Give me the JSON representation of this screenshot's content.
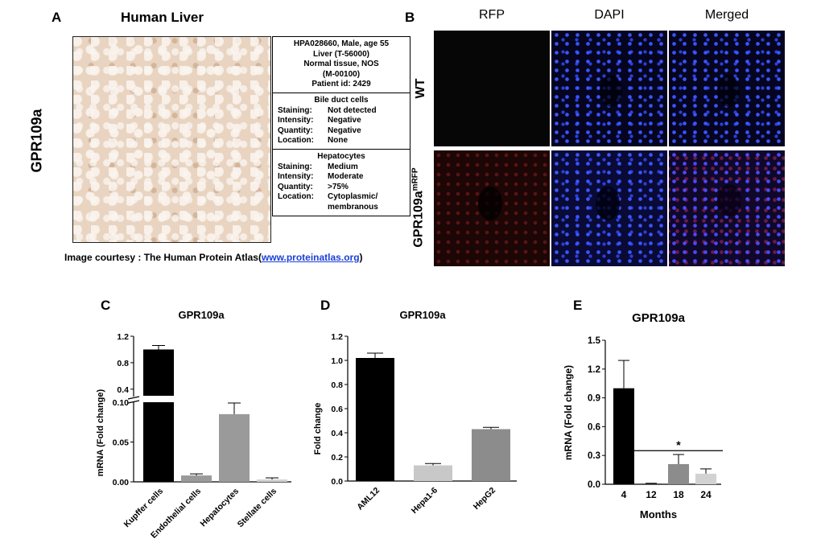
{
  "panelA": {
    "letter": "A",
    "title": "Human Liver",
    "row_label": "GPR109a",
    "info_header": [
      "HPA028660, Male, age 55",
      "Liver (T-56000)",
      "Normal tissue, NOS",
      "(M-00100)",
      "Patient id: 2429"
    ],
    "bile": {
      "title": "Bile duct cells",
      "rows": [
        [
          "Staining:",
          "Not detected"
        ],
        [
          "Intensity:",
          "Negative"
        ],
        [
          "Quantity:",
          "Negative"
        ],
        [
          "Location:",
          "None"
        ]
      ]
    },
    "hep": {
      "title": "Hepatocytes",
      "rows": [
        [
          "Staining:",
          "Medium"
        ],
        [
          "Intensity:",
          "Moderate"
        ],
        [
          "Quantity:",
          ">75%"
        ],
        [
          "Location:",
          "Cytoplasmic/"
        ],
        [
          "",
          "membranous"
        ]
      ]
    },
    "credit_text": "Image courtesy : The Human Protein Atlas(",
    "credit_link": "www.proteinatlas.org",
    "credit_end": ")"
  },
  "panelB": {
    "letter": "B",
    "columns": [
      "RFP",
      "DAPI",
      "Merged"
    ],
    "row1": "WT",
    "row2_main": "GPR109a",
    "row2_sup": "mRFP"
  },
  "colors": {
    "black_bar": "#000000",
    "gray_bar": "#8c8c8c",
    "light_bar": "#c8c8c8",
    "link": "#1a3fd6"
  },
  "chart_data": [
    {
      "letter": "C",
      "type": "bar",
      "title": "GPR109a",
      "ylabel": "mRNA (Fold change)",
      "categories": [
        "Kupffer cells",
        "Endothelial cells",
        "Hepatocytes",
        "Stellate cells"
      ],
      "values": [
        1.0,
        0.008,
        0.085,
        0.003
      ],
      "errors": [
        0.06,
        0.002,
        0.014,
        0.002
      ],
      "bar_colors": [
        "#000000",
        "#9a9a9a",
        "#9a9a9a",
        "#d2d2d2"
      ],
      "axis_break": true,
      "lower_ylim": [
        0,
        0.1
      ],
      "lower_ticks": [
        "0.00",
        "0.05",
        "0.10"
      ],
      "upper_ylim": [
        0.3,
        1.2
      ],
      "upper_ticks": [
        "0.4",
        "0.8",
        "1.2"
      ]
    },
    {
      "letter": "D",
      "type": "bar",
      "title": "GPR109a",
      "ylabel": "Fold change",
      "categories": [
        "AML12",
        "Hepa1-6",
        "HepG2"
      ],
      "values": [
        1.02,
        0.13,
        0.43
      ],
      "errors": [
        0.04,
        0.015,
        0.015
      ],
      "bar_colors": [
        "#000000",
        "#c8c8c8",
        "#8c8c8c"
      ],
      "ylim": [
        0,
        1.2
      ],
      "ticks": [
        "0.0",
        "0.2",
        "0.4",
        "0.6",
        "0.8",
        "1.0",
        "1.2"
      ]
    },
    {
      "letter": "E",
      "type": "bar",
      "title": "GPR109a",
      "ylabel": "mRNA (Fold change)",
      "xlabel": "Months",
      "categories": [
        "4",
        "12",
        "18",
        "24"
      ],
      "values": [
        1.0,
        0.005,
        0.21,
        0.11
      ],
      "errors": [
        0.29,
        0.005,
        0.1,
        0.05
      ],
      "bar_colors": [
        "#000000",
        "#000000",
        "#8c8c8c",
        "#d2d2d2"
      ],
      "ylim": [
        0,
        1.5
      ],
      "ticks": [
        "0.0",
        "0.3",
        "0.6",
        "0.9",
        "1.2",
        "1.5"
      ],
      "significance": "*"
    }
  ]
}
